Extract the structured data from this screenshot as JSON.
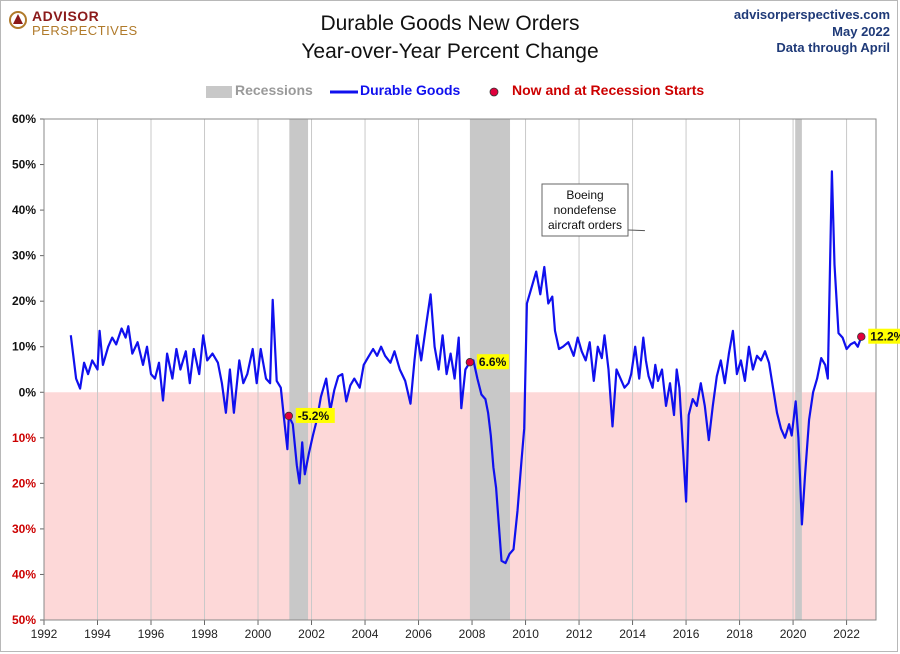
{
  "header": {
    "logo_line1": "ADVISOR",
    "logo_line2": "PERSPECTIVES",
    "title_line1": "Durable Goods New Orders",
    "title_line2": "Year-over-Year Percent Change",
    "source_site": "advisorperspectives.com",
    "source_date": "May 2022",
    "source_note": "Data through April"
  },
  "legend": {
    "recessions": "Recessions",
    "durable_goods": "Durable Goods",
    "points": "Now and at Recession Starts"
  },
  "colors": {
    "line": "#1010ee",
    "recession": "#c8c8c8",
    "negative_zone": "#fdd8d8",
    "point": "#e0003c",
    "label_bg": "#ffff00",
    "negative_tick": "#cc0000"
  },
  "chart_data": {
    "type": "line",
    "title": "Durable Goods New Orders Year-over-Year Percent Change",
    "xlabel": "",
    "ylabel": "",
    "xlim": [
      1992,
      2023.1
    ],
    "ylim": [
      -50,
      60
    ],
    "x_ticks": [
      "1992",
      "1994",
      "1996",
      "1998",
      "2000",
      "2002",
      "2004",
      "2006",
      "2008",
      "2010",
      "2012",
      "2014",
      "2016",
      "2018",
      "2020",
      "2022"
    ],
    "y_ticks": [
      {
        "value": 60,
        "label": "60%"
      },
      {
        "value": 50,
        "label": "50%"
      },
      {
        "value": 40,
        "label": "40%"
      },
      {
        "value": 30,
        "label": "30%"
      },
      {
        "value": 20,
        "label": "20%"
      },
      {
        "value": 10,
        "label": "10%"
      },
      {
        "value": 0,
        "label": "0%"
      },
      {
        "value": -10,
        "label": "10%"
      },
      {
        "value": -20,
        "label": "20%"
      },
      {
        "value": -30,
        "label": "30%"
      },
      {
        "value": -40,
        "label": "40%"
      },
      {
        "value": -50,
        "label": "50%"
      }
    ],
    "grid": "vertical",
    "legend_position": "top-center",
    "recessions": [
      [
        2001.17,
        2001.87
      ],
      [
        2007.92,
        2009.42
      ],
      [
        2020.08,
        2020.33
      ]
    ],
    "series": [
      {
        "name": "Durable Goods",
        "points": [
          [
            1993.0,
            12.5
          ],
          [
            1993.2,
            3.0
          ],
          [
            1993.35,
            0.8
          ],
          [
            1993.5,
            6.5
          ],
          [
            1993.65,
            4.0
          ],
          [
            1993.8,
            7.0
          ],
          [
            1994.0,
            5.0
          ],
          [
            1994.08,
            13.5
          ],
          [
            1994.2,
            6.0
          ],
          [
            1994.4,
            10.0
          ],
          [
            1994.55,
            12.0
          ],
          [
            1994.7,
            10.5
          ],
          [
            1994.9,
            14.0
          ],
          [
            1995.05,
            12.0
          ],
          [
            1995.15,
            14.5
          ],
          [
            1995.3,
            8.5
          ],
          [
            1995.5,
            11.0
          ],
          [
            1995.7,
            6.0
          ],
          [
            1995.85,
            10.0
          ],
          [
            1996.0,
            4.0
          ],
          [
            1996.15,
            3.0
          ],
          [
            1996.3,
            6.5
          ],
          [
            1996.45,
            -1.8
          ],
          [
            1996.6,
            8.5
          ],
          [
            1996.8,
            3.0
          ],
          [
            1996.95,
            9.5
          ],
          [
            1997.1,
            5.0
          ],
          [
            1997.3,
            9.0
          ],
          [
            1997.45,
            2.0
          ],
          [
            1997.6,
            9.5
          ],
          [
            1997.8,
            4.0
          ],
          [
            1997.95,
            12.5
          ],
          [
            1998.1,
            7.0
          ],
          [
            1998.3,
            8.5
          ],
          [
            1998.5,
            6.5
          ],
          [
            1998.65,
            2.0
          ],
          [
            1998.8,
            -4.5
          ],
          [
            1998.95,
            5.0
          ],
          [
            1999.1,
            -4.5
          ],
          [
            1999.3,
            7.0
          ],
          [
            1999.45,
            2.0
          ],
          [
            1999.6,
            4.0
          ],
          [
            1999.8,
            9.5
          ],
          [
            1999.95,
            2.0
          ],
          [
            2000.1,
            9.5
          ],
          [
            2000.3,
            3.0
          ],
          [
            2000.45,
            2.0
          ],
          [
            2000.55,
            20.3
          ],
          [
            2000.7,
            2.5
          ],
          [
            2000.85,
            1.0
          ],
          [
            2000.95,
            -4.5
          ],
          [
            2001.1,
            -12.5
          ],
          [
            2001.15,
            -5.2
          ],
          [
            2001.3,
            -7.0
          ],
          [
            2001.45,
            -16.0
          ],
          [
            2001.55,
            -20.0
          ],
          [
            2001.65,
            -11.0
          ],
          [
            2001.75,
            -18.0
          ],
          [
            2001.9,
            -13.5
          ],
          [
            2002.05,
            -9.5
          ],
          [
            2002.2,
            -6.0
          ],
          [
            2002.35,
            -1.0
          ],
          [
            2002.55,
            3.0
          ],
          [
            2002.7,
            -4.0
          ],
          [
            2002.85,
            0.5
          ],
          [
            2003.0,
            3.5
          ],
          [
            2003.15,
            4.0
          ],
          [
            2003.3,
            -2.0
          ],
          [
            2003.45,
            1.5
          ],
          [
            2003.6,
            3.0
          ],
          [
            2003.8,
            1.0
          ],
          [
            2003.95,
            6.0
          ],
          [
            2004.1,
            7.5
          ],
          [
            2004.3,
            9.5
          ],
          [
            2004.45,
            8.0
          ],
          [
            2004.6,
            10.0
          ],
          [
            2004.75,
            8.0
          ],
          [
            2004.95,
            6.5
          ],
          [
            2005.1,
            9.0
          ],
          [
            2005.3,
            5.0
          ],
          [
            2005.5,
            2.5
          ],
          [
            2005.7,
            -2.5
          ],
          [
            2005.85,
            7.0
          ],
          [
            2005.95,
            12.5
          ],
          [
            2006.1,
            7.0
          ],
          [
            2006.3,
            15.5
          ],
          [
            2006.45,
            21.5
          ],
          [
            2006.6,
            10.0
          ],
          [
            2006.75,
            5.0
          ],
          [
            2006.9,
            12.5
          ],
          [
            2007.05,
            4.0
          ],
          [
            2007.2,
            8.5
          ],
          [
            2007.35,
            3.0
          ],
          [
            2007.5,
            12.0
          ],
          [
            2007.6,
            -3.5
          ],
          [
            2007.75,
            5.0
          ],
          [
            2007.92,
            6.6
          ],
          [
            2008.05,
            7.0
          ],
          [
            2008.2,
            3.0
          ],
          [
            2008.35,
            -0.5
          ],
          [
            2008.5,
            -1.5
          ],
          [
            2008.6,
            -4.5
          ],
          [
            2008.7,
            -9.5
          ],
          [
            2008.8,
            -16.5
          ],
          [
            2008.9,
            -21.0
          ],
          [
            2009.0,
            -29.0
          ],
          [
            2009.1,
            -37.0
          ],
          [
            2009.25,
            -37.5
          ],
          [
            2009.4,
            -35.5
          ],
          [
            2009.55,
            -34.5
          ],
          [
            2009.7,
            -26.0
          ],
          [
            2009.85,
            -15.0
          ],
          [
            2009.95,
            -8.0
          ],
          [
            2010.05,
            19.5
          ],
          [
            2010.2,
            22.5
          ],
          [
            2010.4,
            26.5
          ],
          [
            2010.55,
            21.5
          ],
          [
            2010.7,
            27.5
          ],
          [
            2010.85,
            19.5
          ],
          [
            2011.0,
            21.0
          ],
          [
            2011.1,
            13.5
          ],
          [
            2011.25,
            9.5
          ],
          [
            2011.4,
            10.0
          ],
          [
            2011.6,
            11.0
          ],
          [
            2011.8,
            8.0
          ],
          [
            2011.95,
            12.0
          ],
          [
            2012.1,
            9.0
          ],
          [
            2012.25,
            7.0
          ],
          [
            2012.4,
            11.0
          ],
          [
            2012.55,
            2.5
          ],
          [
            2012.7,
            10.0
          ],
          [
            2012.85,
            7.5
          ],
          [
            2012.95,
            12.5
          ],
          [
            2013.1,
            5.0
          ],
          [
            2013.25,
            -7.5
          ],
          [
            2013.4,
            5.0
          ],
          [
            2013.55,
            3.0
          ],
          [
            2013.7,
            1.0
          ],
          [
            2013.85,
            2.0
          ],
          [
            2013.95,
            4.0
          ],
          [
            2014.1,
            10.0
          ],
          [
            2014.25,
            3.0
          ],
          [
            2014.4,
            12.0
          ],
          [
            2014.5,
            7.0
          ],
          [
            2014.6,
            3.5
          ],
          [
            2014.75,
            1.0
          ],
          [
            2014.85,
            6.0
          ],
          [
            2014.95,
            2.5
          ],
          [
            2015.1,
            5.0
          ],
          [
            2015.25,
            -3.0
          ],
          [
            2015.4,
            2.0
          ],
          [
            2015.55,
            -5.0
          ],
          [
            2015.65,
            5.0
          ],
          [
            2015.75,
            1.0
          ],
          [
            2016.0,
            -24.0
          ],
          [
            2016.1,
            -5.0
          ],
          [
            2016.25,
            -1.5
          ],
          [
            2016.4,
            -3.0
          ],
          [
            2016.55,
            2.0
          ],
          [
            2016.7,
            -3.0
          ],
          [
            2016.85,
            -10.5
          ],
          [
            2017.0,
            -3.0
          ],
          [
            2017.15,
            3.5
          ],
          [
            2017.3,
            7.0
          ],
          [
            2017.45,
            2.0
          ],
          [
            2017.6,
            8.5
          ],
          [
            2017.75,
            13.5
          ],
          [
            2017.9,
            4.0
          ],
          [
            2018.05,
            7.0
          ],
          [
            2018.2,
            2.5
          ],
          [
            2018.35,
            10.0
          ],
          [
            2018.5,
            5.0
          ],
          [
            2018.65,
            8.0
          ],
          [
            2018.8,
            7.0
          ],
          [
            2018.95,
            9.0
          ],
          [
            2019.1,
            6.5
          ],
          [
            2019.25,
            1.0
          ],
          [
            2019.4,
            -4.5
          ],
          [
            2019.55,
            -8.0
          ],
          [
            2019.7,
            -10.0
          ],
          [
            2019.85,
            -7.0
          ],
          [
            2019.95,
            -9.5
          ],
          [
            2020.1,
            -2.0
          ],
          [
            2020.2,
            -10.0
          ],
          [
            2020.33,
            -29.0
          ],
          [
            2020.45,
            -18.0
          ],
          [
            2020.6,
            -6.0
          ],
          [
            2020.75,
            0.0
          ],
          [
            2020.9,
            3.0
          ],
          [
            2021.05,
            7.5
          ],
          [
            2021.2,
            6.0
          ],
          [
            2021.3,
            3.0
          ],
          [
            2021.45,
            48.5
          ],
          [
            2021.55,
            28.0
          ],
          [
            2021.7,
            13.0
          ],
          [
            2021.85,
            12.0
          ],
          [
            2022.0,
            9.5
          ],
          [
            2022.15,
            10.5
          ],
          [
            2022.3,
            11.0
          ],
          [
            2022.42,
            10.0
          ],
          [
            2022.55,
            12.2
          ]
        ]
      }
    ],
    "highlight_points": [
      {
        "x": 2001.15,
        "y": -5.2,
        "label": "-5.2%"
      },
      {
        "x": 2007.92,
        "y": 6.6,
        "label": "6.6%"
      },
      {
        "x": 2022.55,
        "y": 12.2,
        "label": "12.2%"
      }
    ],
    "annotations": [
      {
        "text_lines": [
          "Boeing",
          "nondefense",
          "aircraft orders"
        ],
        "x": 2014.5,
        "y": 35.5
      }
    ]
  }
}
